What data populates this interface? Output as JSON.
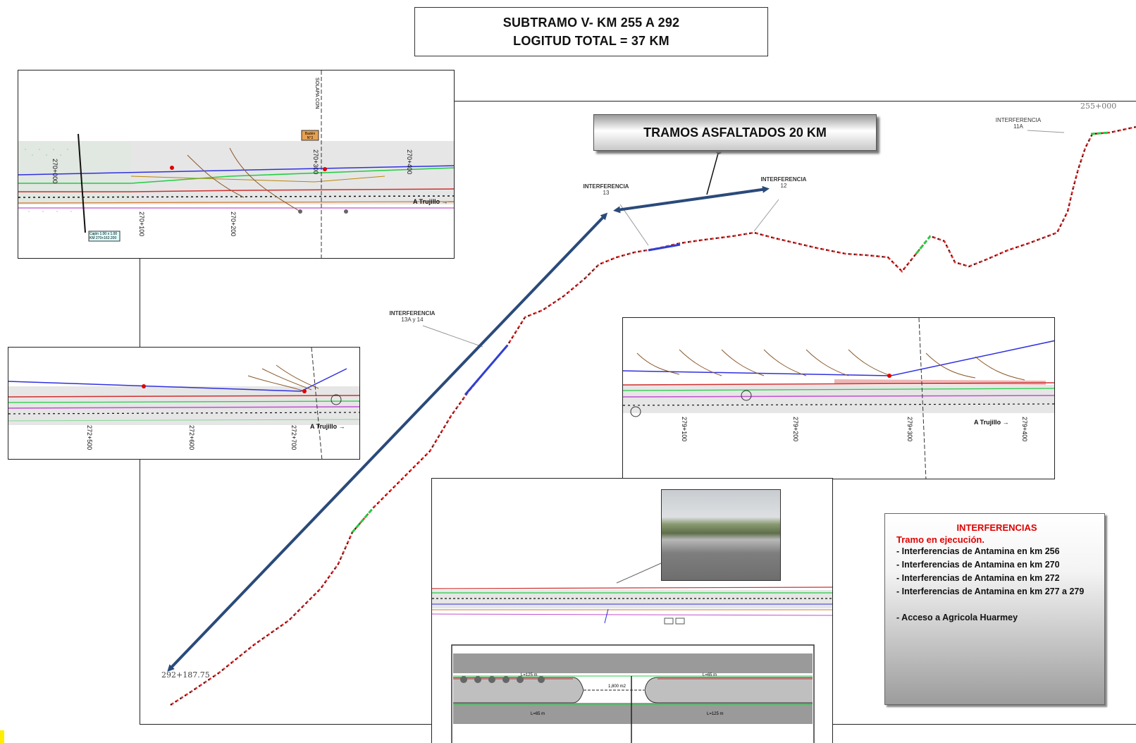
{
  "title": {
    "line1": "SUBTRAMO V- KM 255 A 292",
    "line2": "LOGITUD TOTAL = 37 KM"
  },
  "banner": "TRAMOS ASFALTADOS 20 KM",
  "labels": {
    "interf_13_a": "INTERFERENCIA",
    "interf_13_b": "13",
    "interf_12_a": "INTERFERENCIA",
    "interf_12_b": "12",
    "interf_13a14_a": "INTERFERENCIA",
    "interf_13a14_b": "13A y 14",
    "interf_11a_a": "INTERFERENCIA",
    "interf_11a_b": "11A",
    "station_start": "292+187.75",
    "station_end": "255+000"
  },
  "inset1": {
    "stations": [
      "270+000",
      "270+100",
      "270+200",
      "270+300",
      "270+400"
    ],
    "direction": "A Trujillo",
    "note": "Cajón 1.00 x 1.00 KM 270+162.200",
    "vertical_label": "SOLAPA CON",
    "sign": "Badén N°3"
  },
  "inset2": {
    "stations": [
      "272+500",
      "272+600",
      "272+700"
    ],
    "direction": "A Trujillo"
  },
  "inset3": {
    "stations": [
      "279+100",
      "279+200",
      "279+300",
      "279+400"
    ],
    "direction": "A Trujillo"
  },
  "inset4": {
    "area": "1,800 m2",
    "lengths": {
      "top_left": "L=125 m",
      "top_right": "L=65 m",
      "bottom_left": "L=65 m",
      "bottom_right": "L=125 m"
    }
  },
  "legend": {
    "heading": "INTERFERENCIAS",
    "subheading": "Tramo en ejecución.",
    "items": [
      "- Interferencias de Antamina en km 256",
      "- Interferencias de Antamina en km 270",
      "- Interferencias de Antamina en km 272",
      "- Interferencias de Antamina en km 277 a 279"
    ],
    "extra": "- Acceso a Agricola Huarmey"
  }
}
